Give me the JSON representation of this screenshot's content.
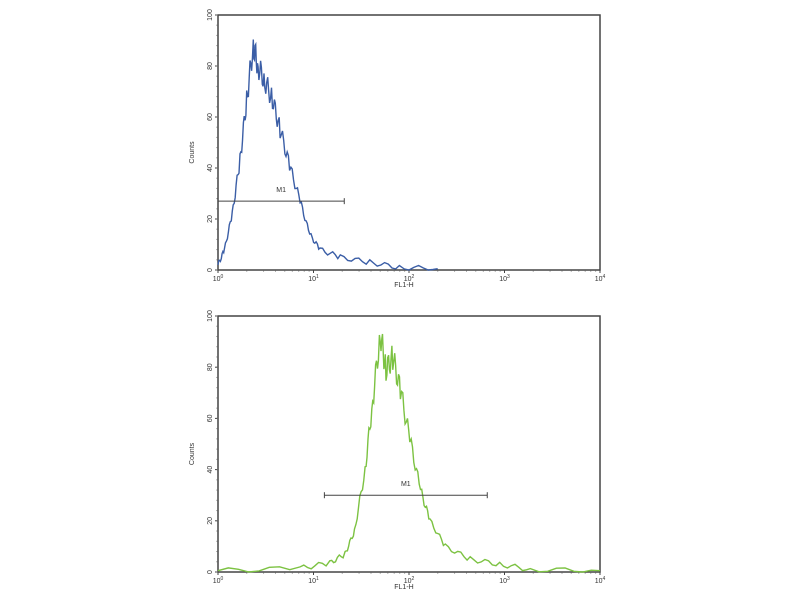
{
  "chart_data": [
    {
      "type": "line",
      "xlabel": "FL1-H",
      "ylabel": "Counts",
      "xscale": "log",
      "xlim": [
        1,
        10000
      ],
      "ylim": [
        0,
        100
      ],
      "xticks": [
        "10^0",
        "10^1",
        "10^2",
        "10^3",
        "10^4"
      ],
      "yticks": [
        0,
        20,
        40,
        60,
        80,
        100
      ],
      "color": "#3b5ea6",
      "series": [
        {
          "x": [
            1,
            1.17,
            1.41,
            1.7,
            2.0,
            2.34,
            2.63,
            3.09,
            3.72,
            4.47,
            5.62,
            7.24,
            9.12,
            11.7,
            19.1,
            38.9,
            79.4,
            200
          ],
          "y": [
            2,
            8,
            22,
            43,
            67,
            88,
            80,
            74,
            67,
            55,
            41,
            27,
            14,
            8,
            5,
            3,
            1,
            0.5
          ]
        }
      ],
      "marker": {
        "label": "M1",
        "x_range": [
          1,
          21
        ],
        "y": 27
      }
    },
    {
      "type": "line",
      "xlabel": "FL1-H",
      "ylabel": "Counts",
      "xscale": "log",
      "xlim": [
        1,
        10000
      ],
      "ylim": [
        0,
        100
      ],
      "xticks": [
        "10^0",
        "10^1",
        "10^2",
        "10^3",
        "10^4"
      ],
      "yticks": [
        0,
        20,
        40,
        60,
        80,
        100
      ],
      "color": "#7cc242",
      "series": [
        {
          "x": [
            1,
            7.24,
            14.8,
            21.4,
            26.9,
            34.7,
            41.7,
            50.1,
            57.5,
            67.6,
            81.3,
            102,
            132,
            166,
            240,
            437,
            891,
            1862,
            10000
          ],
          "y": [
            0.5,
            1.5,
            3.5,
            7,
            16,
            40,
            67,
            93,
            79,
            84,
            71,
            52,
            32,
            20,
            10,
            5,
            3,
            1,
            0.5
          ]
        }
      ],
      "marker": {
        "label": "M1",
        "x_range": [
          13,
          660
        ],
        "y": 30
      }
    }
  ]
}
